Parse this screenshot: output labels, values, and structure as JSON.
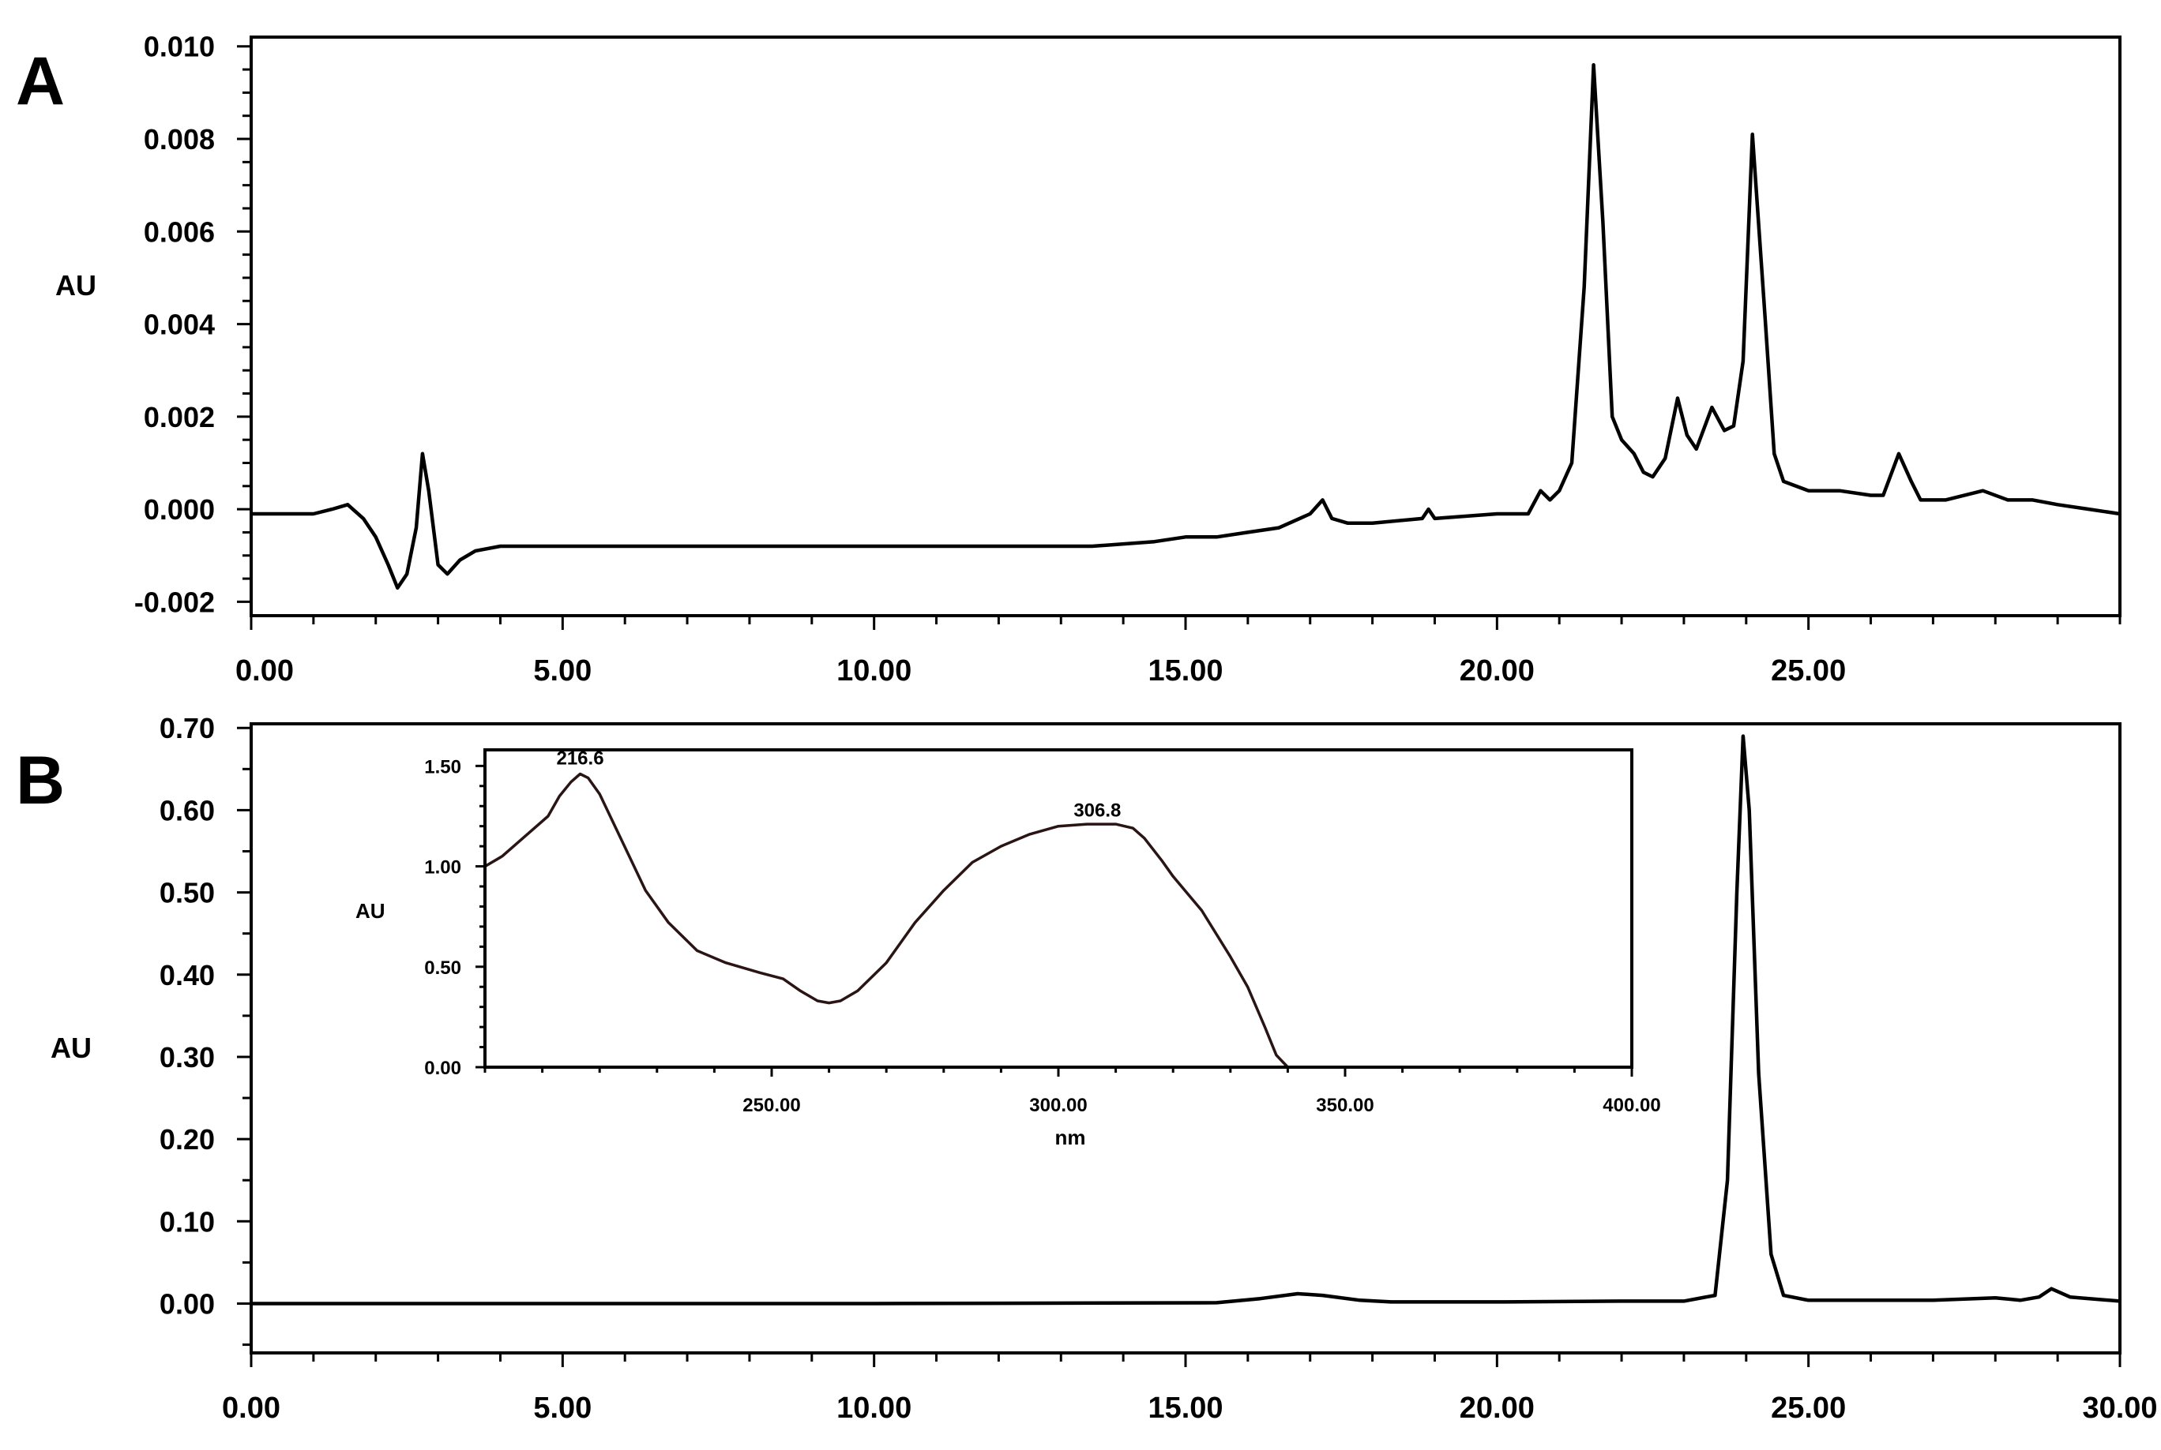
{
  "chart_data": [
    {
      "panel": "A",
      "type": "line",
      "ylabel": "AU",
      "xlim": [
        0,
        30
      ],
      "ylim": [
        -0.0023,
        0.0102
      ],
      "yticks": [
        -0.002,
        0.0,
        0.002,
        0.004,
        0.006,
        0.008,
        0.01
      ],
      "ytick_labels": [
        "-0.002",
        "0.000",
        "0.002",
        "0.004",
        "0.006",
        "0.008",
        "0.010"
      ],
      "xticks": [
        0,
        5,
        10,
        15,
        20,
        25
      ],
      "xtick_labels": [
        "0.00",
        "5.00",
        "10.00",
        "15.00",
        "20.00",
        "25.00"
      ],
      "x_minor_step": 1,
      "y_minor_step": 0.0005,
      "series": [
        {
          "x": [
            0,
            0.5,
            1.0,
            1.3,
            1.55,
            1.8,
            2.0,
            2.2,
            2.35,
            2.5,
            2.65,
            2.75,
            2.85,
            3.0,
            3.15,
            3.35,
            3.6,
            4.0,
            4.5,
            6.0,
            8.0,
            10.0,
            12.0,
            13.5,
            14.5,
            15.0,
            15.5,
            16.0,
            16.5,
            17.0,
            17.2,
            17.35,
            17.6,
            18.0,
            18.8,
            18.9,
            19.0,
            20.0,
            20.5,
            20.7,
            20.85,
            21.0,
            21.2,
            21.4,
            21.55,
            21.7,
            21.85,
            22.0,
            22.2,
            22.35,
            22.5,
            22.7,
            22.9,
            23.05,
            23.2,
            23.45,
            23.65,
            23.8,
            23.95,
            24.1,
            24.3,
            24.45,
            24.6,
            25.0,
            25.5,
            26.0,
            26.2,
            26.45,
            26.65,
            26.8,
            27.2,
            27.8,
            28.2,
            28.6,
            29.0,
            29.5,
            30.0
          ],
          "y": [
            -0.0001,
            -0.0001,
            -0.0001,
            0.0,
            0.0001,
            -0.0002,
            -0.0006,
            -0.0012,
            -0.0017,
            -0.0014,
            -0.0004,
            0.0012,
            0.0004,
            -0.0012,
            -0.0014,
            -0.0011,
            -0.0009,
            -0.0008,
            -0.0008,
            -0.0008,
            -0.0008,
            -0.0008,
            -0.0008,
            -0.0008,
            -0.0007,
            -0.0006,
            -0.0006,
            -0.0005,
            -0.0004,
            -0.0001,
            0.0002,
            -0.0002,
            -0.0003,
            -0.0003,
            -0.0002,
            0.0,
            -0.0002,
            -0.0001,
            -0.0001,
            0.0004,
            0.0002,
            0.0004,
            0.001,
            0.0048,
            0.0096,
            0.0062,
            0.002,
            0.0015,
            0.0012,
            0.0008,
            0.0007,
            0.0011,
            0.0024,
            0.0016,
            0.0013,
            0.0022,
            0.0017,
            0.0018,
            0.0032,
            0.0081,
            0.0042,
            0.0012,
            0.0006,
            0.0004,
            0.0004,
            0.0003,
            0.0003,
            0.0012,
            0.0006,
            0.0002,
            0.0002,
            0.0004,
            0.0002,
            0.0002,
            0.0001,
            0.0,
            -0.0001
          ]
        }
      ]
    },
    {
      "panel": "B",
      "type": "line",
      "ylabel": "AU",
      "xlim": [
        0,
        30
      ],
      "ylim": [
        -0.06,
        0.705
      ],
      "yticks": [
        0.0,
        0.1,
        0.2,
        0.3,
        0.4,
        0.5,
        0.6,
        0.7
      ],
      "ytick_labels": [
        "0.00",
        "0.10",
        "0.20",
        "0.30",
        "0.40",
        "0.50",
        "0.60",
        "0.70"
      ],
      "xticks": [
        0,
        5,
        10,
        15,
        20,
        25,
        30
      ],
      "xtick_labels": [
        "0.00",
        "5.00",
        "10.00",
        "15.00",
        "20.00",
        "25.00",
        "30.00"
      ],
      "x_minor_step": 1,
      "y_minor_step": 0.05,
      "series": [
        {
          "x": [
            0,
            5,
            10,
            15.5,
            16.2,
            16.8,
            17.2,
            17.8,
            18.3,
            20.0,
            22.0,
            23.0,
            23.5,
            23.7,
            23.85,
            23.95,
            24.05,
            24.2,
            24.4,
            24.6,
            25.0,
            27.0,
            28.0,
            28.4,
            28.7,
            28.9,
            29.2,
            30.0
          ],
          "y": [
            0.0,
            0.0,
            0.0,
            0.001,
            0.006,
            0.012,
            0.01,
            0.004,
            0.002,
            0.002,
            0.003,
            0.003,
            0.01,
            0.15,
            0.5,
            0.69,
            0.6,
            0.28,
            0.06,
            0.01,
            0.004,
            0.004,
            0.007,
            0.004,
            0.008,
            0.018,
            0.008,
            0.003
          ]
        }
      ],
      "inset": {
        "type": "line",
        "xlabel": "nm",
        "ylabel": "AU",
        "xlim": [
          200,
          400
        ],
        "ylim": [
          0,
          1.58
        ],
        "yticks": [
          0.0,
          0.5,
          1.0,
          1.5
        ],
        "ytick_labels": [
          "0.00",
          "0.50",
          "1.00",
          "1.50"
        ],
        "xticks": [
          250,
          300,
          350,
          400
        ],
        "xtick_labels": [
          "250.00",
          "300.00",
          "350.00",
          "400.00"
        ],
        "x_minor_step": 10,
        "y_minor_step": 0.1,
        "annotations": [
          {
            "text": "216.6",
            "x": 216.6,
            "y": 1.46
          },
          {
            "text": "306.8",
            "x": 306.8,
            "y": 1.2
          }
        ],
        "series": [
          {
            "x": [
              200,
              203,
              207,
              211,
              213,
              215,
              216.6,
              218,
              220,
              225,
              228,
              232,
              237,
              242,
              248,
              252,
              255,
              258,
              260,
              262,
              265,
              270,
              275,
              280,
              285,
              290,
              295,
              300,
              305,
              310,
              313,
              315,
              318,
              320,
              325,
              330,
              333,
              336,
              338,
              340,
              345,
              350,
              360,
              370,
              380,
              390,
              400
            ],
            "y": [
              1.0,
              1.05,
              1.15,
              1.25,
              1.35,
              1.42,
              1.46,
              1.44,
              1.36,
              1.06,
              0.88,
              0.72,
              0.58,
              0.52,
              0.47,
              0.44,
              0.38,
              0.33,
              0.32,
              0.33,
              0.38,
              0.52,
              0.72,
              0.88,
              1.02,
              1.1,
              1.16,
              1.2,
              1.21,
              1.21,
              1.19,
              1.14,
              1.03,
              0.95,
              0.78,
              0.55,
              0.4,
              0.2,
              0.06,
              0.0,
              0.0,
              0.0,
              0.0,
              0.0,
              0.0,
              0.0,
              0.0
            ]
          }
        ]
      }
    }
  ]
}
